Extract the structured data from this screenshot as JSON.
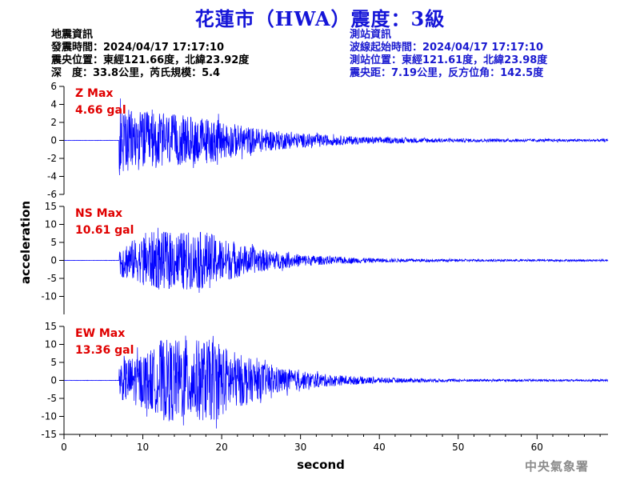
{
  "header": {
    "title": "花蓮市（HWA）震度：3級"
  },
  "quake_info": {
    "heading": "地震資訊",
    "origin_time": "發震時間：2024/04/17 17:17:10",
    "epicenter": "震央位置：東經121.66度，北緯23.92度",
    "depth_magnitude": "深　度：33.8公里，芮氏規模：5.4"
  },
  "station_info": {
    "heading": "測站資訊",
    "wave_start": "波線起始時間：2024/04/17 17:17:10",
    "location": "測站位置：東經121.61度，北緯23.98度",
    "distance": "震央距：7.19公里，反方位角：142.5度"
  },
  "agency": "中央氣象署",
  "chart_data": {
    "type": "line",
    "xlabel": "second",
    "ylabel": "acceleration",
    "xlim": [
      0,
      69
    ],
    "x_ticks": [
      0,
      10,
      20,
      30,
      40,
      50,
      60
    ],
    "colors": {
      "trace": "#0000ff",
      "peak_label": "#e00000",
      "axis": "#000000"
    },
    "panels": [
      {
        "name": "Z",
        "max_label": "Z Max",
        "max_value": "4.66 gal",
        "ylim": [
          -6,
          6
        ],
        "y_ticks": [
          6,
          4,
          2,
          0,
          -2,
          -4,
          -6
        ],
        "peak": 4.66
      },
      {
        "name": "NS",
        "max_label": "NS Max",
        "max_value": "10.61 gal",
        "ylim": [
          -15,
          15
        ],
        "y_ticks": [
          15,
          10,
          5,
          0,
          -5,
          -10
        ],
        "peak": 10.61
      },
      {
        "name": "EW",
        "max_label": "EW Max",
        "max_value": "13.36 gal",
        "ylim": [
          -15,
          15
        ],
        "y_ticks": [
          15,
          10,
          5,
          0,
          -5,
          -10,
          -15
        ],
        "peak": 13.36
      }
    ]
  }
}
